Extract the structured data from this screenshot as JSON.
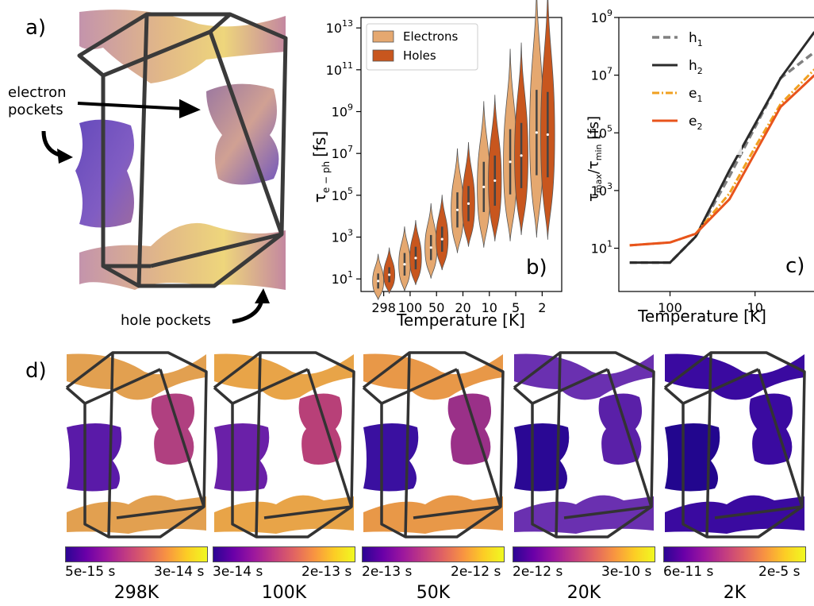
{
  "panel_a": {
    "letter": "a)",
    "label_electron_line1": "electron",
    "label_electron_line2": "pockets",
    "label_hole": "hole pockets"
  },
  "panel_b": {
    "letter": "b)",
    "ylabel_main": "τ",
    "ylabel_sub": "e − ph",
    "ylabel_unit": "[fs]",
    "xlabel": "Temperature [K]",
    "xticks": [
      "298",
      "100",
      "50",
      "20",
      "10",
      "5",
      "2"
    ],
    "yticks": [
      {
        "base": "10",
        "exp": "1"
      },
      {
        "base": "10",
        "exp": "3"
      },
      {
        "base": "10",
        "exp": "5"
      },
      {
        "base": "10",
        "exp": "7"
      },
      {
        "base": "10",
        "exp": "9"
      },
      {
        "base": "10",
        "exp": "11"
      },
      {
        "base": "10",
        "exp": "13"
      }
    ],
    "legend": [
      "Electrons",
      "Holes"
    ],
    "colors": {
      "electrons": "#e5a870",
      "holes": "#c8561e"
    }
  },
  "panel_c": {
    "letter": "c)",
    "xlabel": "Temperature [K]",
    "ylabel": "τmax/τmin [fs]",
    "xticks": [
      "100",
      "10"
    ],
    "yticks": [
      {
        "base": "10",
        "exp": "1"
      },
      {
        "base": "10",
        "exp": "3"
      },
      {
        "base": "10",
        "exp": "5"
      },
      {
        "base": "10",
        "exp": "7"
      },
      {
        "base": "10",
        "exp": "9"
      }
    ],
    "legend": [
      {
        "name": "h",
        "sub": "1"
      },
      {
        "name": "h",
        "sub": "2"
      },
      {
        "name": "e",
        "sub": "1"
      },
      {
        "name": "e",
        "sub": "2"
      }
    ],
    "colors": {
      "h1": "#808080",
      "h2": "#2b2b2b",
      "e1": "#f0a020",
      "e2": "#e8541c"
    }
  },
  "panel_d": {
    "letter": "d)",
    "maps": [
      {
        "min": "5e-15 s",
        "max": "3e-14 s",
        "temp": "298K"
      },
      {
        "min": "3e-14 s",
        "max": "2e-13 s",
        "temp": "100K"
      },
      {
        "min": "2e-13 s",
        "max": "2e-12 s",
        "temp": "50K"
      },
      {
        "min": "2e-12 s",
        "max": "3e-10 s",
        "temp": "20K"
      },
      {
        "min": "6e-11 s",
        "max": "2e-5 s",
        "temp": "2K"
      }
    ]
  },
  "chart_data": [
    {
      "type": "violin",
      "ylabel": "τe−ph [fs]",
      "xlabel": "Temperature [K]",
      "yscale": "log",
      "categories": [
        "298",
        "100",
        "50",
        "20",
        "10",
        "5",
        "2"
      ],
      "series": [
        {
          "name": "Electrons",
          "median_log10": [
            0.9,
            1.7,
            2.5,
            4.3,
            5.4,
            6.6,
            8.0
          ]
        },
        {
          "name": "Holes",
          "median_log10": [
            1.2,
            2.0,
            2.9,
            4.6,
            5.7,
            6.9,
            7.9
          ]
        }
      ]
    },
    {
      "type": "line",
      "ylabel": "τmax/τmin [fs]",
      "xlabel": "Temperature [K]",
      "xscale": "log",
      "xreversed": true,
      "yscale": "log",
      "x": [
        298,
        100,
        50,
        20,
        10,
        5,
        2
      ],
      "series": [
        {
          "name": "h1",
          "log10_y": [
            0.5,
            0.5,
            1.4,
            3.5,
            5.2,
            6.9,
            7.8
          ]
        },
        {
          "name": "h2",
          "log10_y": [
            0.5,
            0.5,
            1.4,
            3.7,
            5.3,
            6.9,
            8.5
          ]
        },
        {
          "name": "e1",
          "log10_y": [
            1.1,
            1.2,
            1.5,
            2.9,
            4.5,
            6.0,
            7.2
          ]
        },
        {
          "name": "e2",
          "log10_y": [
            1.1,
            1.2,
            1.5,
            2.7,
            4.3,
            5.9,
            7.0
          ]
        }
      ]
    }
  ]
}
